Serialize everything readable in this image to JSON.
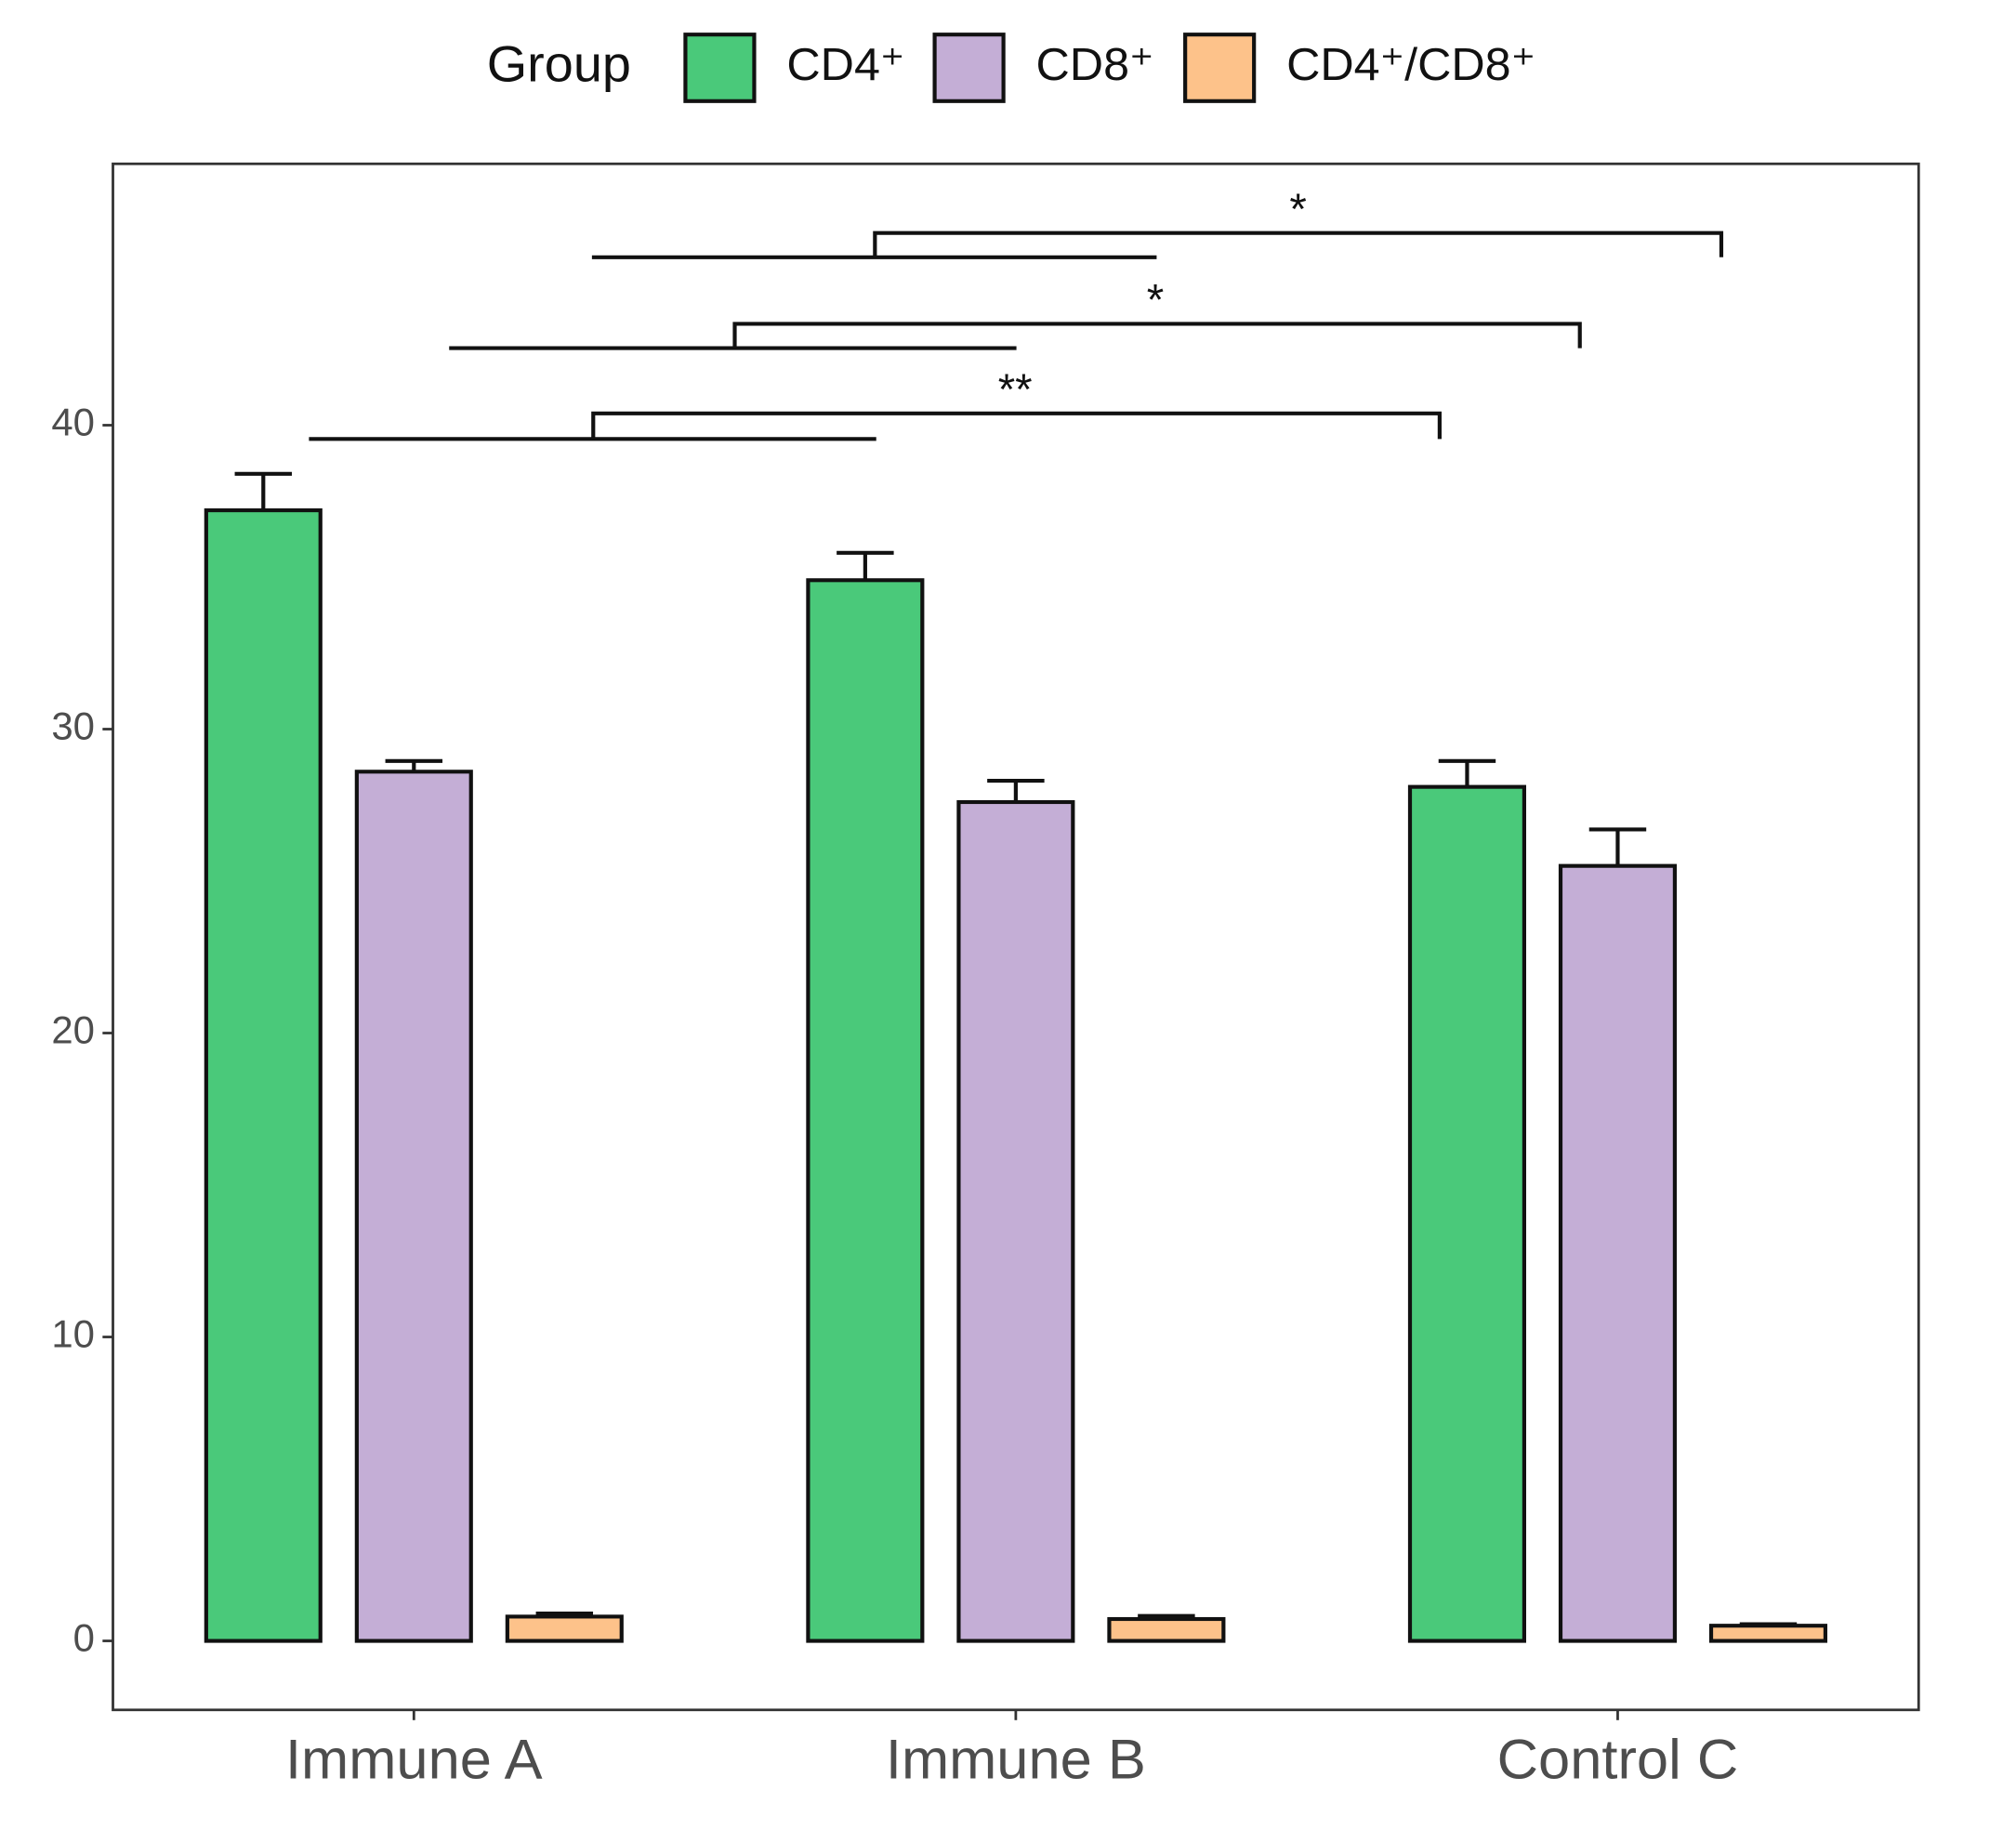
{
  "chart_data": {
    "type": "bar",
    "categories": [
      "Immune A",
      "Immune B",
      "Control C"
    ],
    "legend_title": "Group",
    "series": [
      {
        "name": "CD4⁺",
        "color": "#4ac97a",
        "values": [
          37.2,
          34.9,
          28.1
        ],
        "errors": [
          1.2,
          0.9,
          0.85
        ]
      },
      {
        "name": "CD8⁺",
        "color": "#c4aed6",
        "values": [
          28.6,
          27.6,
          25.5
        ],
        "errors": [
          0.35,
          0.7,
          1.2
        ]
      },
      {
        "name": "CD4⁺/CD8⁺",
        "color": "#fdc28a",
        "values": [
          0.8,
          0.72,
          0.5
        ],
        "errors": [
          0.1,
          0.1,
          0.05
        ]
      }
    ],
    "ylim": [
      -2.27,
      48.6
    ],
    "yticks": [
      0,
      10,
      20,
      30,
      40
    ],
    "annotations": [
      "**",
      "*",
      "*"
    ],
    "grid": false,
    "legend": "top"
  }
}
